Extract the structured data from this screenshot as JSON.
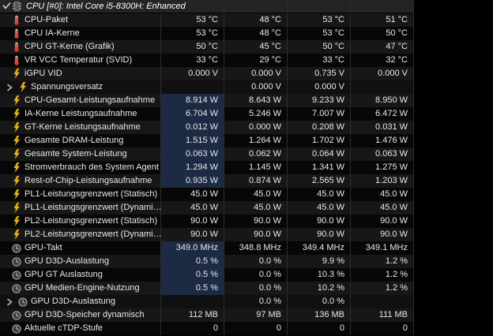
{
  "header": {
    "title": "CPU [#0]: Intel Core i5-8300H: Enhanced",
    "state": "expanded"
  },
  "colors": {
    "background": "#000000",
    "row_light": "#171717",
    "row_dark": "#070707",
    "header_bg": "#242424",
    "grid_line": "#2d2d2d",
    "highlight_cell": "#1c2a44",
    "text": "#e8e8e8",
    "thermometer": "#d03a20",
    "bolt": "#f0b428",
    "clock": "#9a9a9a"
  },
  "columns_semantic": [
    "current",
    "minimum",
    "maximum",
    "average"
  ],
  "rows": [
    {
      "icon": "thermometer",
      "label": "CPU-Paket",
      "values": [
        "53 °C",
        "48 °C",
        "53 °C",
        "51 °C"
      ],
      "highlight": false,
      "group": false
    },
    {
      "icon": "thermometer",
      "label": "CPU IA-Kerne",
      "values": [
        "53 °C",
        "48 °C",
        "53 °C",
        "50 °C"
      ],
      "highlight": false,
      "group": false
    },
    {
      "icon": "thermometer",
      "label": "CPU GT-Kerne (Grafik)",
      "values": [
        "50 °C",
        "45 °C",
        "50 °C",
        "47 °C"
      ],
      "highlight": false,
      "group": false
    },
    {
      "icon": "thermometer",
      "label": "VR VCC Temperatur (SVID)",
      "values": [
        "33 °C",
        "29 °C",
        "33 °C",
        "32 °C"
      ],
      "highlight": false,
      "group": false
    },
    {
      "icon": "bolt",
      "label": "iGPU VID",
      "values": [
        "0.000 V",
        "0.000 V",
        "0.735 V",
        "0.000 V"
      ],
      "highlight": false,
      "group": false
    },
    {
      "icon": "bolt",
      "label": "Spannungsversatz",
      "values": [
        "",
        "0.000 V",
        "0.000 V",
        ""
      ],
      "highlight": false,
      "group": true
    },
    {
      "icon": "bolt",
      "label": "CPU-Gesamt-Leistungsaufnahme",
      "values": [
        "8.914 W",
        "8.643 W",
        "9.233 W",
        "8.950 W"
      ],
      "highlight": true,
      "group": false
    },
    {
      "icon": "bolt",
      "label": "IA-Kerne Leistungsaufnahme",
      "values": [
        "6.704 W",
        "5.246 W",
        "7.007 W",
        "6.472 W"
      ],
      "highlight": true,
      "group": false
    },
    {
      "icon": "bolt",
      "label": "GT-Kerne Leistungsaufnahme",
      "values": [
        "0.012 W",
        "0.000 W",
        "0.208 W",
        "0.031 W"
      ],
      "highlight": true,
      "group": false
    },
    {
      "icon": "bolt",
      "label": "Gesamte DRAM-Leistung",
      "values": [
        "1.515 W",
        "1.264 W",
        "1.702 W",
        "1.476 W"
      ],
      "highlight": true,
      "group": false
    },
    {
      "icon": "bolt",
      "label": "Gesamte System-Leistung",
      "values": [
        "0.063 W",
        "0.062 W",
        "0.064 W",
        "0.063 W"
      ],
      "highlight": true,
      "group": false
    },
    {
      "icon": "bolt",
      "label": "Stromverbrauch des System Agent",
      "values": [
        "1.294 W",
        "1.145 W",
        "1.341 W",
        "1.275 W"
      ],
      "highlight": true,
      "group": false
    },
    {
      "icon": "bolt",
      "label": "Rest-of-Chip-Leistungsaufnahme",
      "values": [
        "0.935 W",
        "0.874 W",
        "2.565 W",
        "1.203 W"
      ],
      "highlight": true,
      "group": false
    },
    {
      "icon": "bolt",
      "label": "PL1-Leistungsgrenzwert (Statisch)",
      "values": [
        "45.0 W",
        "45.0 W",
        "45.0 W",
        "45.0 W"
      ],
      "highlight": false,
      "group": false
    },
    {
      "icon": "bolt",
      "label": "PL1-Leistungsgrenzwert (Dynami…",
      "values": [
        "45.0 W",
        "45.0 W",
        "45.0 W",
        "45.0 W"
      ],
      "highlight": false,
      "group": false
    },
    {
      "icon": "bolt",
      "label": "PL2-Leistungsgrenzwert (Statisch)",
      "values": [
        "90.0 W",
        "90.0 W",
        "90.0 W",
        "90.0 W"
      ],
      "highlight": false,
      "group": false
    },
    {
      "icon": "bolt",
      "label": "PL2-Leistungsgrenzwert (Dynami…",
      "values": [
        "90.0 W",
        "90.0 W",
        "90.0 W",
        "90.0 W"
      ],
      "highlight": false,
      "group": false
    },
    {
      "icon": "clock",
      "label": "GPU-Takt",
      "values": [
        "349.0 MHz",
        "348.8 MHz",
        "349.4 MHz",
        "349.1 MHz"
      ],
      "highlight": true,
      "group": false
    },
    {
      "icon": "clock",
      "label": "GPU D3D-Auslastung",
      "values": [
        "0.5 %",
        "0.0 %",
        "9.9 %",
        "1.2 %"
      ],
      "highlight": true,
      "group": false
    },
    {
      "icon": "clock",
      "label": "GPU GT Auslastung",
      "values": [
        "0.5 %",
        "0.0 %",
        "10.3 %",
        "1.2 %"
      ],
      "highlight": true,
      "group": false
    },
    {
      "icon": "clock",
      "label": "GPU Medien-Engine-Nutzung",
      "values": [
        "0.5 %",
        "0.0 %",
        "10.2 %",
        "1.2 %"
      ],
      "highlight": true,
      "group": false
    },
    {
      "icon": "clock",
      "label": "GPU D3D-Auslastung",
      "values": [
        "",
        "0.0 %",
        "0.0 %",
        ""
      ],
      "highlight": false,
      "group": true
    },
    {
      "icon": "clock",
      "label": "GPU D3D-Speicher dynamisch",
      "values": [
        "112 MB",
        "97 MB",
        "136 MB",
        "111 MB"
      ],
      "highlight": false,
      "group": false
    },
    {
      "icon": "clock",
      "label": "Aktuelle cTDP-Stufe",
      "values": [
        "0",
        "0",
        "0",
        "0"
      ],
      "highlight": false,
      "group": false
    }
  ]
}
